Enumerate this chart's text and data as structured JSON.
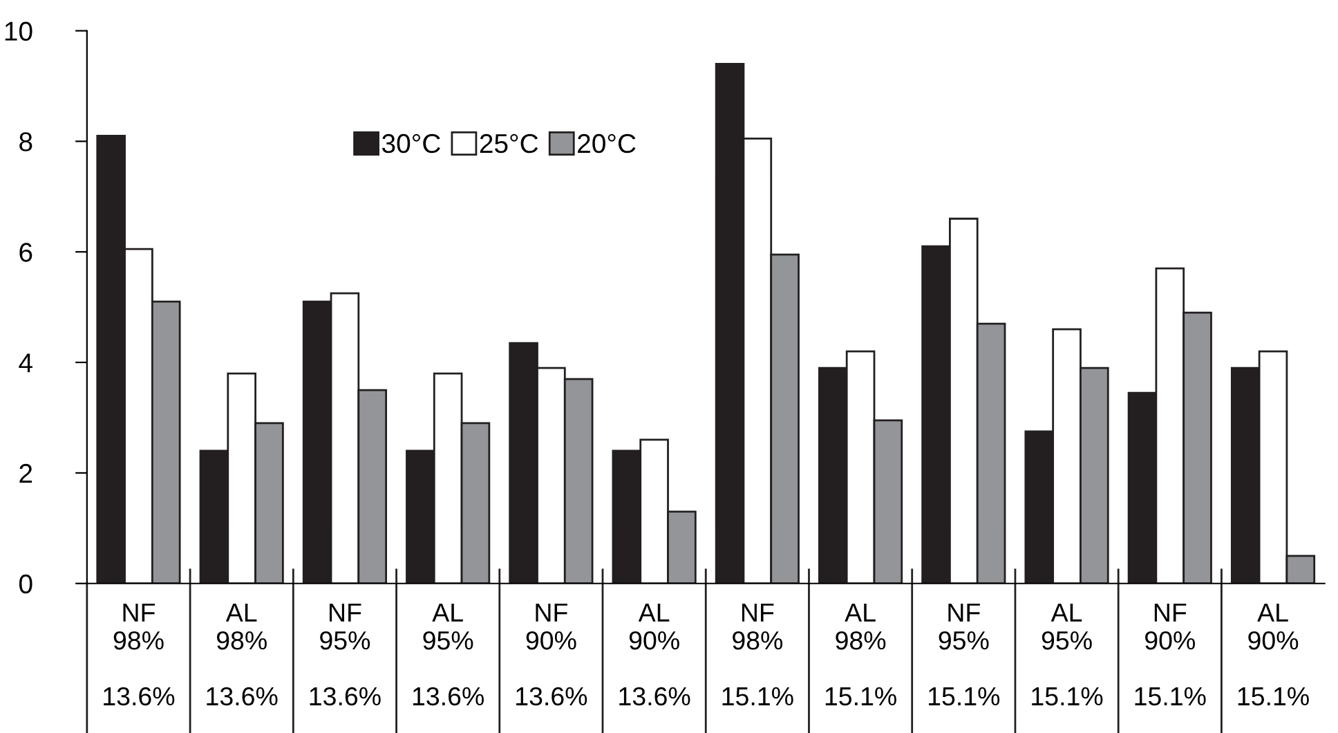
{
  "chart_data": {
    "type": "bar",
    "categories": [
      "NF\n98%\n\n13.6%",
      "AL\n98%\n\n13.6%",
      "NF\n95%\n\n13.6%",
      "AL\n95%\n\n13.6%",
      "NF\n90%\n\n13.6%",
      "AL\n90%\n\n13.6%",
      "NF\n98%\n\n15.1%",
      "AL\n98%\n\n15.1%",
      "NF\n95%\n\n15.1%",
      "AL\n95%\n\n15.1%",
      "NF\n90%\n\n15.1%",
      "AL\n90%\n\n15.1%"
    ],
    "series": [
      {
        "name": "30°C",
        "color": "#231f20",
        "values": [
          8.1,
          2.4,
          5.1,
          2.4,
          4.35,
          2.4,
          9.4,
          3.9,
          6.1,
          2.75,
          3.45,
          3.9
        ]
      },
      {
        "name": "25°C",
        "color": "#ffffff",
        "values": [
          6.05,
          3.8,
          5.25,
          3.8,
          3.9,
          2.6,
          8.05,
          4.2,
          6.6,
          4.6,
          5.7,
          4.2
        ]
      },
      {
        "name": "20°C",
        "color": "#939598",
        "values": [
          5.1,
          2.9,
          3.5,
          2.9,
          3.7,
          1.3,
          5.95,
          2.95,
          4.7,
          3.9,
          4.9,
          0.5
        ]
      }
    ],
    "ylim": [
      0,
      10
    ],
    "yticks": [
      0,
      2,
      4,
      6,
      8,
      10
    ],
    "grid": false,
    "legend": "top"
  }
}
